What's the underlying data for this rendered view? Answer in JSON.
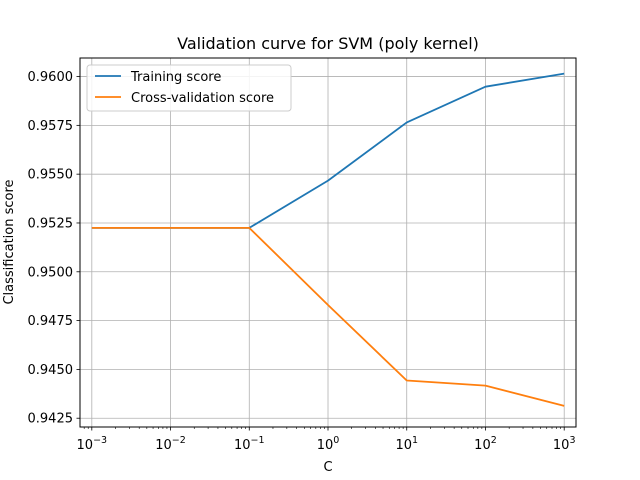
{
  "chart_data": {
    "type": "line",
    "title": "Validation curve for SVM (poly kernel)",
    "xlabel": "C",
    "ylabel": "Classification score",
    "xscale": "log",
    "x": [
      0.001,
      0.01,
      0.1,
      1,
      10,
      100,
      1000
    ],
    "x_tick_labels": [
      {
        "base": "10",
        "exp": "−3"
      },
      {
        "base": "10",
        "exp": "−2"
      },
      {
        "base": "10",
        "exp": "−1"
      },
      {
        "base": "10",
        "exp": "0"
      },
      {
        "base": "10",
        "exp": "1"
      },
      {
        "base": "10",
        "exp": "2"
      },
      {
        "base": "10",
        "exp": "3"
      }
    ],
    "y_ticks": [
      0.9425,
      0.945,
      0.9475,
      0.95,
      0.9525,
      0.955,
      0.9575,
      0.96
    ],
    "y_tick_labels": [
      "0.9425",
      "0.9450",
      "0.9475",
      "0.9500",
      "0.9525",
      "0.9550",
      "0.9575",
      "0.9600"
    ],
    "xlim": [
      0.000708,
      1412
    ],
    "ylim": [
      0.94205,
      0.96095
    ],
    "grid": true,
    "legend_position": "top-left",
    "series": [
      {
        "name": "Training score",
        "color": "#1f77b4",
        "values": [
          0.95225,
          0.95225,
          0.95225,
          0.95467,
          0.95765,
          0.95948,
          0.96015
        ]
      },
      {
        "name": "Cross-validation score",
        "color": "#ff7f0e",
        "values": [
          0.95225,
          0.95225,
          0.95225,
          0.9483,
          0.94443,
          0.94417,
          0.94313
        ]
      }
    ]
  }
}
